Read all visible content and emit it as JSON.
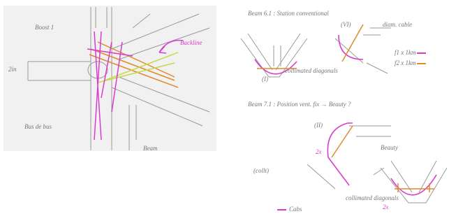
{
  "left_sketch": {
    "labels": [
      "Boost 1",
      "Backline",
      "2in",
      "Bus de bus",
      "Beam"
    ]
  },
  "right_sketches": {
    "top": {
      "title": "Beam 6.1 : Station conventional",
      "labels": [
        "(VI)",
        "diam. cable",
        "(I)",
        "collimated diagonals",
        "f1 x 1km",
        "f2 x 1km"
      ]
    },
    "bottom": {
      "title": "Beam 7.1 : Position vent. fix → Beauty ?",
      "labels": [
        "(II)",
        "2x",
        "Beauty",
        "(collt)",
        "collimated diagonals",
        "2x",
        "Cabs"
      ]
    }
  }
}
